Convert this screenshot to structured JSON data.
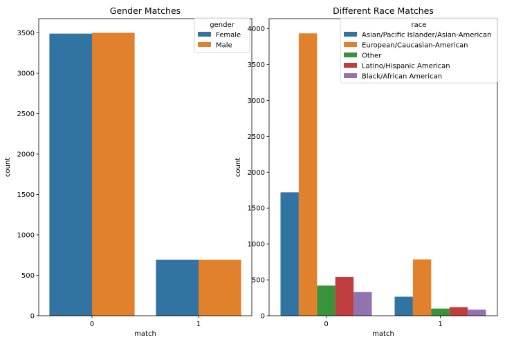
{
  "chart_data": [
    {
      "type": "bar",
      "title": "Gender Matches",
      "xlabel": "match",
      "ylabel": "count",
      "categories": [
        "0",
        "1"
      ],
      "ylim": [
        0,
        3675
      ],
      "yticks": [
        0,
        500,
        1000,
        1500,
        2000,
        2500,
        3000,
        3500
      ],
      "legend": {
        "title": "gender",
        "placement": "top-right"
      },
      "grid": false,
      "series": [
        {
          "name": "Female",
          "color": "#3274a1",
          "values": [
            3490,
            694
          ]
        },
        {
          "name": "Male",
          "color": "#e1812c",
          "values": [
            3500,
            694
          ]
        }
      ]
    },
    {
      "type": "bar",
      "title": "Different Race Matches",
      "xlabel": "match",
      "ylabel": "count",
      "categories": [
        "0",
        "1"
      ],
      "ylim": [
        0,
        4140
      ],
      "yticks": [
        0,
        500,
        1000,
        1500,
        2000,
        2500,
        3000,
        3500,
        4000
      ],
      "legend": {
        "title": "race",
        "placement": "top-right"
      },
      "grid": false,
      "series": [
        {
          "name": "Asian/Pacific Islander/Asian-American",
          "color": "#3274a1",
          "values": [
            1720,
            265
          ]
        },
        {
          "name": "European/Caucasian-American",
          "color": "#e1812c",
          "values": [
            3935,
            785
          ]
        },
        {
          "name": "Other",
          "color": "#3a923a",
          "values": [
            420,
            100
          ]
        },
        {
          "name": "Latino/Hispanic American",
          "color": "#c03d3e",
          "values": [
            540,
            120
          ]
        },
        {
          "name": "Black/African American",
          "color": "#9372b2",
          "values": [
            330,
            85
          ]
        }
      ]
    }
  ]
}
